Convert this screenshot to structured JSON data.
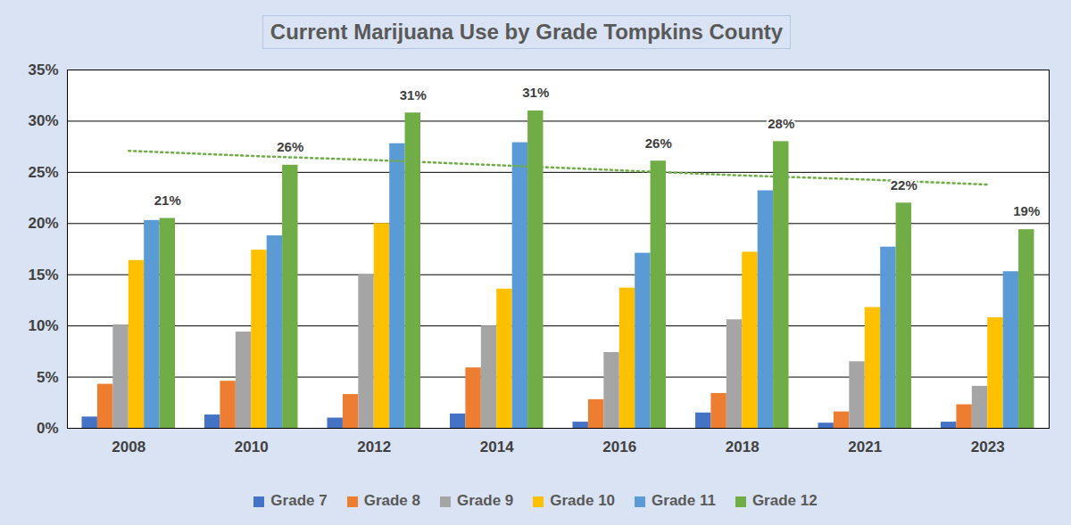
{
  "chart_data": {
    "type": "bar",
    "title": "Current Marijuana Use by Grade Tompkins County",
    "categories": [
      "2008",
      "2010",
      "2012",
      "2014",
      "2016",
      "2018",
      "2021",
      "2023"
    ],
    "series": [
      {
        "name": "Grade 7",
        "color": "#4472c4",
        "values": [
          1.1,
          1.3,
          1.0,
          1.4,
          0.6,
          1.5,
          0.5,
          0.6
        ]
      },
      {
        "name": "Grade 8",
        "color": "#ed7d31",
        "values": [
          4.3,
          4.6,
          3.3,
          5.9,
          2.8,
          3.4,
          1.6,
          2.3
        ]
      },
      {
        "name": "Grade 9",
        "color": "#a5a5a5",
        "values": [
          10.1,
          9.4,
          15.0,
          10.0,
          7.4,
          10.6,
          6.5,
          4.1
        ]
      },
      {
        "name": "Grade 10",
        "color": "#ffc000",
        "values": [
          16.4,
          17.4,
          20.0,
          13.6,
          13.7,
          17.2,
          11.8,
          10.8
        ]
      },
      {
        "name": "Grade 11",
        "color": "#5b9bd5",
        "values": [
          20.3,
          18.8,
          27.8,
          27.9,
          17.1,
          23.2,
          17.7,
          15.3
        ]
      },
      {
        "name": "Grade 12",
        "color": "#70ad47",
        "values": [
          20.5,
          25.7,
          30.8,
          31.0,
          26.1,
          28.0,
          22.0,
          19.4
        ],
        "data_labels": true,
        "value_labels": [
          "21%",
          "26%",
          "31%",
          "31%",
          "26%",
          "28%",
          "22%",
          "19%"
        ]
      },
      {
        "type": "line",
        "line_style": "dotted",
        "color": "#70ad47",
        "values": [
          27.1,
          26.6,
          26.2,
          25.7,
          25.2,
          24.7,
          24.3,
          23.8
        ]
      }
    ],
    "ylim": [
      0,
      35
    ],
    "yticks": [
      {
        "value": 0,
        "label": "0%"
      },
      {
        "value": 5,
        "label": "5%"
      },
      {
        "value": 10,
        "label": "10%"
      },
      {
        "value": 15,
        "label": "15%"
      },
      {
        "value": 20,
        "label": "20%"
      },
      {
        "value": 25,
        "label": "25%"
      },
      {
        "value": 30,
        "label": "30%"
      },
      {
        "value": 35,
        "label": "35%"
      }
    ],
    "grid": true
  }
}
